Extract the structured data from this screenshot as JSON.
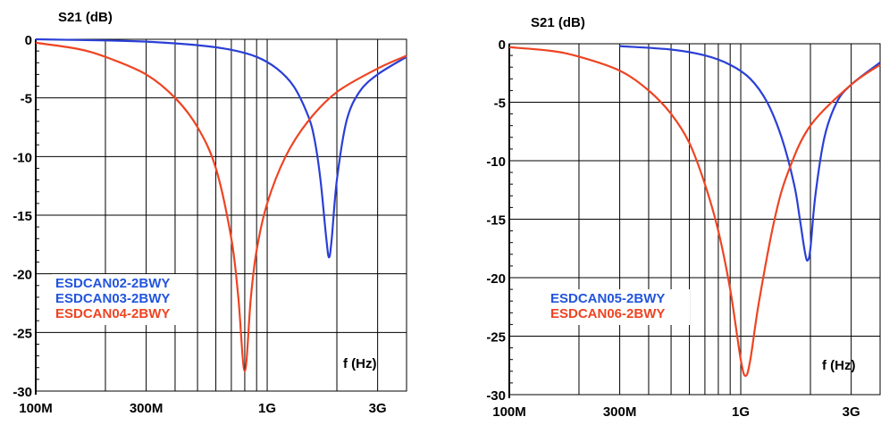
{
  "chart_data": [
    {
      "type": "line",
      "title": "",
      "ylabel": "S21 (dB)",
      "xlabel": "f (Hz)",
      "xscale": "log",
      "xlim": [
        100000000,
        4000000000
      ],
      "ylim": [
        -30,
        0
      ],
      "yticks": [
        0,
        -5,
        -10,
        -15,
        -20,
        -25,
        -30
      ],
      "yticklabels": [
        "0",
        "-5",
        "-10",
        "-15",
        "-20",
        "-25",
        "-30"
      ],
      "xticks": [
        100000000,
        300000000,
        1000000000,
        3000000000
      ],
      "xticklabels": [
        "100M",
        "300M",
        "1G",
        "3G"
      ],
      "grid": true,
      "legend_position": "bottom-left",
      "legend": [
        {
          "label": "ESDCAN02-2BWY",
          "color": "#2255dd"
        },
        {
          "label": "ESDCAN03-2BWY",
          "color": "#2255dd"
        },
        {
          "label": "ESDCAN04-2BWY",
          "color": "#ee4422"
        }
      ],
      "series": [
        {
          "color": "#2a3fd6",
          "x": [
            100000000,
            200000000,
            300000000,
            500000000,
            700000000,
            900000000,
            1100000000,
            1300000000,
            1500000000,
            1600000000,
            1700000000,
            1800000000,
            1850000000,
            1900000000,
            2000000000,
            2200000000,
            2500000000,
            3000000000,
            4000000000
          ],
          "y": [
            0,
            -0.1,
            -0.2,
            -0.5,
            -0.9,
            -1.5,
            -2.5,
            -4.0,
            -6.5,
            -8.5,
            -12,
            -17,
            -18.6,
            -17,
            -12,
            -7,
            -4.5,
            -3,
            -1.5
          ]
        },
        {
          "color": "#ee4422",
          "x": [
            100000000,
            150000000,
            200000000,
            300000000,
            400000000,
            500000000,
            600000000,
            700000000,
            750000000,
            800000000,
            850000000,
            900000000,
            1000000000,
            1200000000,
            1500000000,
            2000000000,
            3000000000,
            4000000000
          ],
          "y": [
            -0.3,
            -0.8,
            -1.5,
            -3,
            -5,
            -7.5,
            -11,
            -17,
            -22,
            -28.3,
            -22,
            -18,
            -14,
            -10,
            -7,
            -4.5,
            -2.5,
            -1.4
          ]
        }
      ]
    },
    {
      "type": "line",
      "title": "",
      "ylabel": "S21 (dB)",
      "xlabel": "f (Hz)",
      "xscale": "log",
      "xlim": [
        100000000,
        4000000000
      ],
      "ylim": [
        -30,
        0
      ],
      "yticks": [
        0,
        -5,
        -10,
        -15,
        -20,
        -25,
        -30
      ],
      "yticklabels": [
        "0",
        "-5",
        "-10",
        "-15",
        "-20",
        "-25",
        "-30"
      ],
      "xticks": [
        100000000,
        300000000,
        1000000000,
        3000000000
      ],
      "xticklabels": [
        "100M",
        "300M",
        "1G",
        "3G"
      ],
      "grid": true,
      "legend_position": "bottom-left",
      "legend": [
        {
          "label": "ESDCAN05-2BWY",
          "color": "#2255dd"
        },
        {
          "label": "ESDCAN06-2BWY",
          "color": "#ee4422"
        }
      ],
      "series": [
        {
          "color": "#2a3fd6",
          "x": [
            300000000,
            500000000,
            700000000,
            900000000,
            1100000000,
            1300000000,
            1500000000,
            1700000000,
            1800000000,
            1900000000,
            1950000000,
            2000000000,
            2100000000,
            2300000000,
            2600000000,
            3000000000,
            4000000000
          ],
          "y": [
            -0.2,
            -0.5,
            -1.0,
            -1.8,
            -3.0,
            -5.0,
            -8.0,
            -12,
            -15,
            -18,
            -18.5,
            -17.5,
            -13,
            -8,
            -5,
            -3.5,
            -1.6
          ]
        },
        {
          "color": "#ee4422",
          "x": [
            100000000,
            150000000,
            200000000,
            300000000,
            400000000,
            500000000,
            600000000,
            700000000,
            800000000,
            900000000,
            1000000000,
            1050000000,
            1100000000,
            1200000000,
            1400000000,
            1600000000,
            2000000000,
            3000000000,
            4000000000
          ],
          "y": [
            -0.3,
            -0.6,
            -1.1,
            -2.3,
            -4,
            -6,
            -8.5,
            -12,
            -16,
            -21,
            -27,
            -28.4,
            -27,
            -22,
            -15,
            -11,
            -7,
            -3.5,
            -1.8
          ]
        }
      ]
    }
  ]
}
